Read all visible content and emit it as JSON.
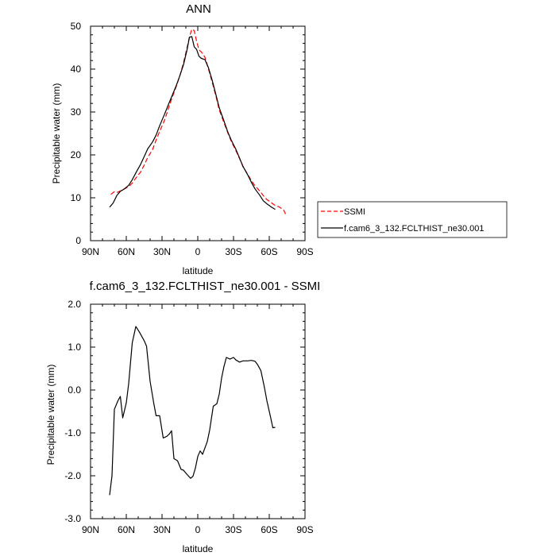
{
  "chart_data": [
    {
      "type": "line",
      "title": "ANN",
      "xlabel": "latitude",
      "ylabel": "Precipitable water (mm)",
      "xlim": [
        -90,
        90
      ],
      "ylim": [
        0,
        50
      ],
      "xticks": [
        -90,
        -60,
        -30,
        0,
        30,
        60,
        90
      ],
      "xtick_labels": [
        "90N",
        "60N",
        "30N",
        "0",
        "30S",
        "60S",
        "90S"
      ],
      "yticks": [
        0,
        10,
        20,
        30,
        40,
        50
      ],
      "ytick_labels": [
        "0",
        "10",
        "20",
        "30",
        "40",
        "50"
      ],
      "legend_position": "right",
      "series": [
        {
          "name": "SSMI",
          "color": "#ff0000",
          "dash": "dashed",
          "x": [
            -73,
            -70,
            -68,
            -65,
            -62,
            -58,
            -55,
            -52,
            -48,
            -45,
            -42,
            -38,
            -35,
            -32,
            -28,
            -25,
            -22,
            -18,
            -15,
            -12,
            -9,
            -7,
            -5,
            -3,
            -1,
            1,
            3,
            6,
            9,
            12,
            15,
            18,
            22,
            25,
            28,
            32,
            35,
            38,
            42,
            45,
            48,
            52,
            55,
            58,
            62,
            65,
            68,
            72,
            74
          ],
          "y": [
            10.8,
            11.4,
            11.2,
            11.6,
            12.0,
            12.6,
            13.4,
            14.6,
            16.0,
            17.6,
            19.4,
            21.2,
            23.4,
            25.5,
            28.0,
            30.5,
            33.0,
            36.0,
            38.5,
            41.5,
            45.0,
            47.5,
            49.3,
            49.0,
            46.5,
            44.5,
            44.0,
            42.8,
            40.0,
            37.0,
            34.0,
            30.5,
            27.5,
            25.3,
            23.2,
            21.0,
            19.2,
            17.2,
            15.4,
            14.0,
            12.8,
            11.6,
            10.5,
            9.6,
            8.8,
            8.2,
            7.9,
            7.2,
            6.0
          ]
        },
        {
          "name": "f.cam6_3_132.FCLTHIST_ne30.001",
          "color": "#000000",
          "dash": "solid",
          "x": [
            -74,
            -71,
            -68,
            -65,
            -62,
            -58,
            -55,
            -52,
            -48,
            -45,
            -42,
            -38,
            -35,
            -32,
            -28,
            -25,
            -22,
            -18,
            -15,
            -12,
            -9,
            -7,
            -5,
            -3,
            -1,
            1,
            3,
            6,
            9,
            12,
            15,
            18,
            22,
            25,
            28,
            32,
            35,
            38,
            42,
            45,
            48,
            52,
            55,
            58,
            62,
            65
          ],
          "y": [
            7.8,
            8.8,
            10.5,
            11.5,
            12.0,
            12.9,
            14.2,
            15.8,
            17.8,
            19.6,
            21.4,
            23.0,
            24.6,
            26.8,
            29.4,
            31.5,
            33.5,
            36.2,
            38.5,
            41.0,
            44.5,
            47.4,
            47.6,
            45.2,
            44.6,
            43.0,
            42.5,
            42.2,
            40.3,
            37.5,
            34.3,
            31.0,
            27.9,
            25.5,
            23.5,
            21.3,
            19.3,
            17.3,
            15.3,
            13.6,
            12.1,
            10.6,
            9.3,
            8.6,
            7.8,
            7.3
          ]
        }
      ]
    },
    {
      "type": "line",
      "title": "f.cam6_3_132.FCLTHIST_ne30.001 - SSMI",
      "xlabel": "latitude",
      "ylabel": "Precipitable water (mm)",
      "xlim": [
        -90,
        90
      ],
      "ylim": [
        -3.0,
        2.0
      ],
      "xticks": [
        -90,
        -60,
        -30,
        0,
        30,
        60,
        90
      ],
      "xtick_labels": [
        "90N",
        "60N",
        "30N",
        "0",
        "30S",
        "60S",
        "90S"
      ],
      "yticks": [
        -3.0,
        -2.0,
        -1.0,
        0.0,
        1.0,
        2.0
      ],
      "ytick_labels": [
        "-3.0",
        "-2.0",
        "-1.0",
        "0.0",
        "1.0",
        "2.0"
      ],
      "series": [
        {
          "name": "",
          "color": "#000000",
          "dash": "solid",
          "x": [
            -74,
            -72,
            -70,
            -67,
            -65,
            -63,
            -60,
            -58,
            -55,
            -52,
            -49,
            -45,
            -43,
            -40,
            -37,
            -35,
            -32,
            -29,
            -26,
            -24,
            -22,
            -20,
            -17,
            -14,
            -12,
            -9,
            -6,
            -4,
            -2,
            0,
            2,
            4,
            6,
            8,
            10,
            13,
            16,
            18,
            20,
            22,
            24,
            27,
            30,
            32,
            35,
            38,
            42,
            45,
            48,
            50,
            53,
            56,
            58,
            61,
            63,
            65
          ],
          "y": [
            -2.45,
            -2.0,
            -0.45,
            -0.25,
            -0.15,
            -0.65,
            -0.3,
            0.15,
            1.1,
            1.48,
            1.35,
            1.15,
            1.02,
            0.2,
            -0.3,
            -0.6,
            -0.6,
            -1.12,
            -1.08,
            -1.03,
            -0.95,
            -1.6,
            -1.65,
            -1.85,
            -1.87,
            -1.97,
            -2.06,
            -2.01,
            -1.82,
            -1.55,
            -1.42,
            -1.5,
            -1.35,
            -1.2,
            -0.93,
            -0.38,
            -0.32,
            -0.1,
            0.28,
            0.55,
            0.76,
            0.72,
            0.76,
            0.7,
            0.65,
            0.68,
            0.68,
            0.69,
            0.67,
            0.6,
            0.45,
            0.05,
            -0.25,
            -0.62,
            -0.88,
            -0.87
          ]
        }
      ]
    }
  ]
}
